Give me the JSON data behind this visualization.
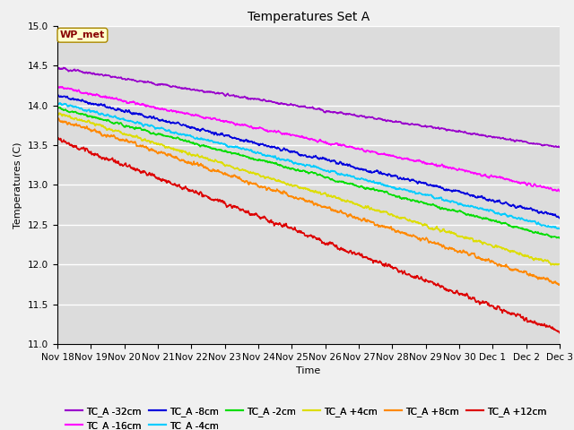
{
  "title": "Temperatures Set A",
  "xlabel": "Time",
  "ylabel": "Temperatures (C)",
  "ylim": [
    11.0,
    15.0
  ],
  "yticks": [
    11.0,
    11.5,
    12.0,
    12.5,
    13.0,
    13.5,
    14.0,
    14.5,
    15.0
  ],
  "plot_bg_color": "#dcdcdc",
  "fig_bg_color": "#f0f0f0",
  "series": [
    {
      "label": "TC_A -32cm",
      "color": "#9900cc",
      "start": 14.47,
      "end": 13.47,
      "noise": 0.018
    },
    {
      "label": "TC_A -16cm",
      "color": "#ff00ff",
      "start": 14.23,
      "end": 12.93,
      "noise": 0.022
    },
    {
      "label": "TC_A -8cm",
      "color": "#0000dd",
      "start": 14.13,
      "end": 12.6,
      "noise": 0.025
    },
    {
      "label": "TC_A -4cm",
      "color": "#00ccff",
      "start": 14.03,
      "end": 12.45,
      "noise": 0.022
    },
    {
      "label": "TC_A -2cm",
      "color": "#00dd00",
      "start": 13.97,
      "end": 12.33,
      "noise": 0.02
    },
    {
      "label": "TC_A +4cm",
      "color": "#dddd00",
      "start": 13.9,
      "end": 11.98,
      "noise": 0.025
    },
    {
      "label": "TC_A +8cm",
      "color": "#ff8800",
      "start": 13.83,
      "end": 11.75,
      "noise": 0.03
    },
    {
      "label": "TC_A +12cm",
      "color": "#dd0000",
      "start": 13.57,
      "end": 11.15,
      "noise": 0.035
    }
  ],
  "n_points": 1440,
  "x_start_days": 0,
  "x_end_days": 15,
  "xtick_days": [
    0,
    1,
    2,
    3,
    4,
    5,
    6,
    7,
    8,
    9,
    10,
    11,
    12,
    13,
    14,
    15
  ],
  "xtick_labels": [
    "Nov 18",
    "Nov 19",
    "Nov 20",
    "Nov 21",
    "Nov 22",
    "Nov 23",
    "Nov 24",
    "Nov 25",
    "Nov 26",
    "Nov 27",
    "Nov 28",
    "Nov 29",
    "Nov 30",
    "Dec 1",
    "Dec 2",
    "Dec 3"
  ],
  "legend_label": "WP_met",
  "legend_bg": "#ffffcc",
  "legend_edge": "#aa8800",
  "linewidth": 1.2,
  "alpha_autocorr": 0.75
}
